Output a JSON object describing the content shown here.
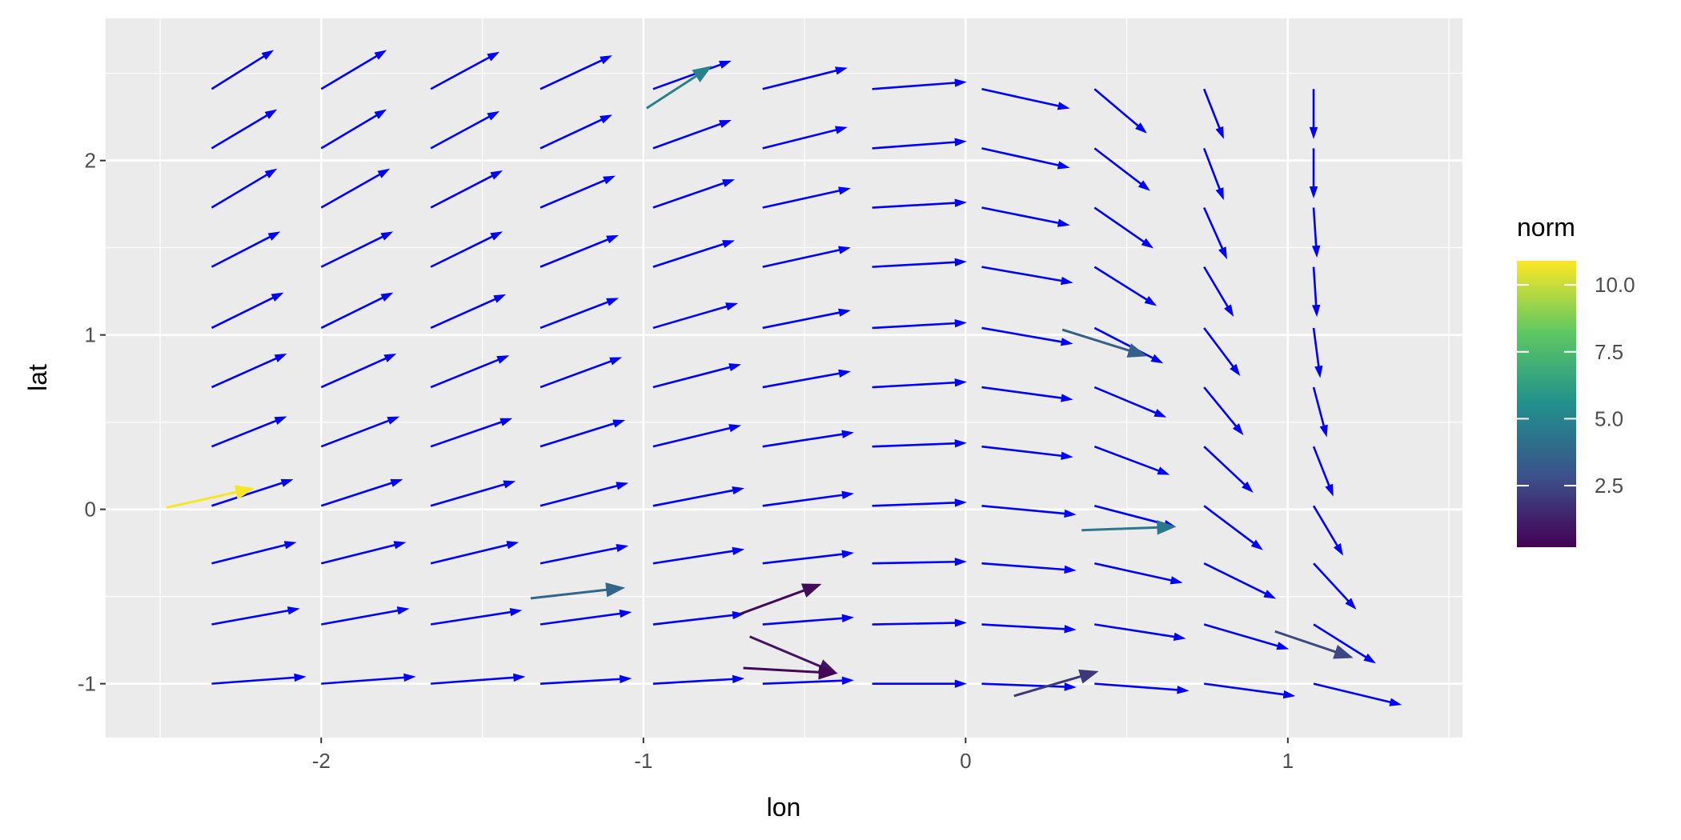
{
  "chart_data": {
    "type": "quiver",
    "xlabel": "lon",
    "ylabel": "lat",
    "xlim": [
      -2.669,
      1.542
    ],
    "ylim": [
      -1.309,
      2.815
    ],
    "x_ticks": [
      -2,
      -1,
      0,
      1
    ],
    "y_ticks": [
      -1,
      0,
      1,
      2
    ],
    "grid": true,
    "panel_background": "#EBEBEB",
    "field_color": "#0000FF",
    "field_grid": {
      "lon": [
        -2.34,
        -2.0,
        -1.66,
        -1.32,
        -0.97,
        -0.63,
        -0.29,
        0.05,
        0.4,
        0.74,
        1.08
      ],
      "lat": [
        -1.0,
        -0.66,
        -0.31,
        0.02,
        0.36,
        0.7,
        1.04,
        1.39,
        1.73,
        2.07,
        2.41
      ]
    },
    "field_vectors_by_lon_then_lat": [
      [
        [
          0.29,
          0.04
        ],
        [
          0.27,
          0.09
        ],
        [
          0.26,
          0.12
        ],
        [
          0.25,
          0.15
        ],
        [
          0.23,
          0.17
        ],
        [
          0.23,
          0.19
        ],
        [
          0.22,
          0.2
        ],
        [
          0.21,
          0.2
        ],
        [
          0.2,
          0.22
        ],
        [
          0.2,
          0.22
        ],
        [
          0.19,
          0.22
        ]
      ],
      [
        [
          0.29,
          0.04
        ],
        [
          0.27,
          0.09
        ],
        [
          0.26,
          0.12
        ],
        [
          0.25,
          0.15
        ],
        [
          0.24,
          0.17
        ],
        [
          0.23,
          0.19
        ],
        [
          0.22,
          0.2
        ],
        [
          0.22,
          0.2
        ],
        [
          0.21,
          0.22
        ],
        [
          0.2,
          0.22
        ],
        [
          0.2,
          0.22
        ]
      ],
      [
        [
          0.29,
          0.04
        ],
        [
          0.28,
          0.08
        ],
        [
          0.27,
          0.12
        ],
        [
          0.26,
          0.14
        ],
        [
          0.25,
          0.16
        ],
        [
          0.24,
          0.18
        ],
        [
          0.23,
          0.19
        ],
        [
          0.22,
          0.2
        ],
        [
          0.22,
          0.21
        ],
        [
          0.21,
          0.21
        ],
        [
          0.21,
          0.21
        ]
      ],
      [
        [
          0.28,
          0.03
        ],
        [
          0.28,
          0.07
        ],
        [
          0.27,
          0.1
        ],
        [
          0.27,
          0.13
        ],
        [
          0.26,
          0.15
        ],
        [
          0.25,
          0.17
        ],
        [
          0.24,
          0.17
        ],
        [
          0.24,
          0.18
        ],
        [
          0.23,
          0.18
        ],
        [
          0.22,
          0.19
        ],
        [
          0.22,
          0.19
        ]
      ],
      [
        [
          0.28,
          0.03
        ],
        [
          0.28,
          0.06
        ],
        [
          0.28,
          0.08
        ],
        [
          0.28,
          0.1
        ],
        [
          0.27,
          0.12
        ],
        [
          0.27,
          0.13
        ],
        [
          0.26,
          0.14
        ],
        [
          0.25,
          0.15
        ],
        [
          0.25,
          0.16
        ],
        [
          0.24,
          0.16
        ],
        [
          0.24,
          0.16
        ]
      ],
      [
        [
          0.28,
          0.02
        ],
        [
          0.28,
          0.04
        ],
        [
          0.28,
          0.06
        ],
        [
          0.28,
          0.07
        ],
        [
          0.28,
          0.08
        ],
        [
          0.27,
          0.09
        ],
        [
          0.27,
          0.1
        ],
        [
          0.27,
          0.11
        ],
        [
          0.27,
          0.11
        ],
        [
          0.26,
          0.12
        ],
        [
          0.26,
          0.12
        ]
      ],
      [
        [
          0.29,
          0.0
        ],
        [
          0.29,
          0.01
        ],
        [
          0.29,
          0.01
        ],
        [
          0.29,
          0.02
        ],
        [
          0.29,
          0.02
        ],
        [
          0.29,
          0.03
        ],
        [
          0.29,
          0.03
        ],
        [
          0.29,
          0.03
        ],
        [
          0.29,
          0.03
        ],
        [
          0.29,
          0.04
        ],
        [
          0.29,
          0.04
        ]
      ],
      [
        [
          0.29,
          -0.02
        ],
        [
          0.29,
          -0.03
        ],
        [
          0.29,
          -0.04
        ],
        [
          0.29,
          -0.05
        ],
        [
          0.28,
          -0.06
        ],
        [
          0.28,
          -0.07
        ],
        [
          0.28,
          -0.09
        ],
        [
          0.28,
          -0.09
        ],
        [
          0.27,
          -0.1
        ],
        [
          0.27,
          -0.11
        ],
        [
          0.27,
          -0.11
        ]
      ],
      [
        [
          0.29,
          -0.04
        ],
        [
          0.28,
          -0.08
        ],
        [
          0.27,
          -0.11
        ],
        [
          0.25,
          -0.12
        ],
        [
          0.23,
          -0.16
        ],
        [
          0.22,
          -0.17
        ],
        [
          0.21,
          -0.2
        ],
        [
          0.19,
          -0.22
        ],
        [
          0.18,
          -0.23
        ],
        [
          0.17,
          -0.24
        ],
        [
          0.16,
          -0.25
        ]
      ],
      [
        [
          0.28,
          -0.07
        ],
        [
          0.26,
          -0.14
        ],
        [
          0.22,
          -0.2
        ],
        [
          0.18,
          -0.25
        ],
        [
          0.15,
          -0.26
        ],
        [
          0.12,
          -0.27
        ],
        [
          0.11,
          -0.27
        ],
        [
          0.09,
          -0.28
        ],
        [
          0.07,
          -0.29
        ],
        [
          0.06,
          -0.29
        ],
        [
          0.06,
          -0.28
        ]
      ],
      [
        [
          0.27,
          -0.12
        ],
        [
          0.19,
          -0.22
        ],
        [
          0.13,
          -0.26
        ],
        [
          0.09,
          -0.28
        ],
        [
          0.06,
          -0.28
        ],
        [
          0.04,
          -0.28
        ],
        [
          0.02,
          -0.28
        ],
        [
          0.01,
          -0.28
        ],
        [
          0.01,
          -0.28
        ],
        [
          0,
          -0.28
        ],
        [
          0,
          -0.28
        ]
      ]
    ],
    "norm_arrows": [
      {
        "x": -2.48,
        "y": 0.01,
        "xend": -2.21,
        "yend": 0.12,
        "norm": 10.8
      },
      {
        "x": -0.99,
        "y": 2.3,
        "xend": -0.79,
        "yend": 2.54,
        "norm": 5.0
      },
      {
        "x": 0.3,
        "y": 1.03,
        "xend": 0.56,
        "yend": 0.88,
        "norm": 3.5
      },
      {
        "x": 0.36,
        "y": -0.12,
        "xend": 0.65,
        "yend": -0.1,
        "norm": 4.5
      },
      {
        "x": -1.35,
        "y": -0.51,
        "xend": -1.06,
        "yend": -0.45,
        "norm": 3.8
      },
      {
        "x": -0.7,
        "y": -0.6,
        "xend": -0.45,
        "yend": -0.43,
        "norm": 0.5
      },
      {
        "x": -0.67,
        "y": -0.73,
        "xend": -0.4,
        "yend": -0.94,
        "norm": 0.8
      },
      {
        "x": -0.69,
        "y": -0.91,
        "xend": -0.4,
        "yend": -0.94,
        "norm": 0.4
      },
      {
        "x": 0.15,
        "y": -1.07,
        "xend": 0.41,
        "yend": -0.93,
        "norm": 2.0
      },
      {
        "x": 0.96,
        "y": -0.7,
        "xend": 1.2,
        "yend": -0.85,
        "norm": 2.5
      }
    ],
    "legend": {
      "title": "norm",
      "position": "right",
      "palette": "viridis",
      "range": [
        0.2,
        10.9
      ],
      "breaks": [
        2.5,
        5.0,
        7.5,
        10.0
      ],
      "break_labels": [
        "2.5",
        "5.0",
        "7.5",
        "10.0"
      ]
    }
  }
}
